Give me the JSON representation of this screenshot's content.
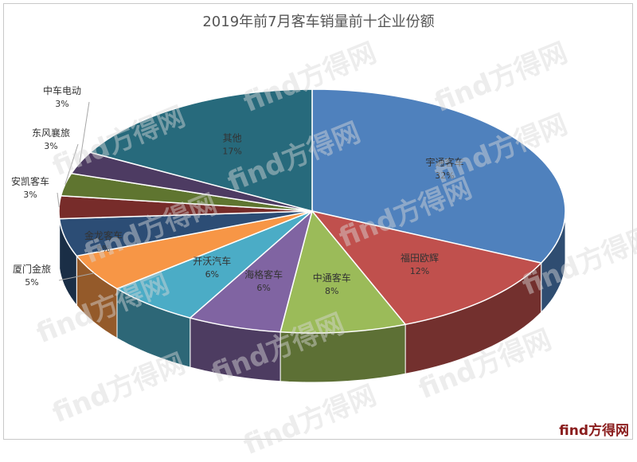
{
  "chart_data": {
    "type": "pie",
    "title": "2019年前7月客车销量前十企业份额",
    "slices": [
      {
        "label": "宇通客车",
        "value": 32,
        "value_label": "32%",
        "color": "#4f81bd"
      },
      {
        "label": "福田欧辉",
        "value": 12,
        "value_label": "12%",
        "color": "#c0504d"
      },
      {
        "label": "中通客车",
        "value": 8,
        "value_label": "8%",
        "color": "#9bbb59"
      },
      {
        "label": "海格客车",
        "value": 6,
        "value_label": "6%",
        "color": "#8064a2"
      },
      {
        "label": "开沃汽车",
        "value": 6,
        "value_label": "6%",
        "color": "#4bacc6"
      },
      {
        "label": "厦门金旅",
        "value": 5,
        "value_label": "5%",
        "color": "#f79646"
      },
      {
        "label": "金龙客车",
        "value": 5,
        "value_label": "5%",
        "color": "#2c4d75"
      },
      {
        "label": "安凯客车",
        "value": 3,
        "value_label": "3%",
        "color": "#772c2a"
      },
      {
        "label": "东风襄旅",
        "value": 3,
        "value_label": "3%",
        "color": "#5f7530"
      },
      {
        "label": "中车电动",
        "value": 3,
        "value_label": "3%",
        "color": "#4d3b62"
      },
      {
        "label": "其他",
        "value": 17,
        "value_label": "17%",
        "color": "#276a7c"
      }
    ]
  },
  "watermark": {
    "text": "find方得网"
  },
  "brand": {
    "text": "find方得网"
  }
}
